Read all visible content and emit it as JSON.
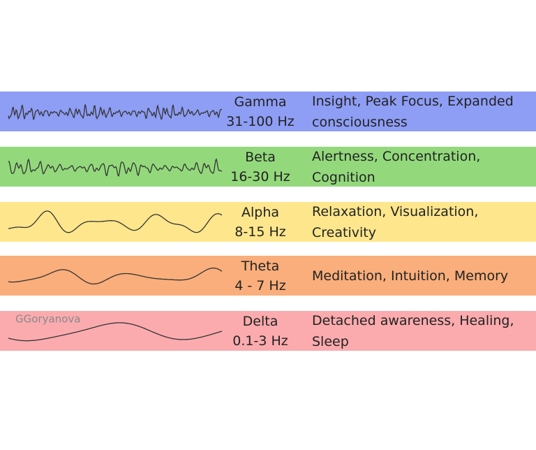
{
  "watermark": "GGoryanova",
  "rows": [
    {
      "name": "Gamma",
      "frequency": "31-100 Hz",
      "description": [
        "Insight, Peak Focus, Expanded",
        "consciousness"
      ],
      "color": "#8e9ef5"
    },
    {
      "name": "Beta",
      "frequency": "16-30 Hz",
      "description": [
        "Alertness, Concentration,",
        "Cognition"
      ],
      "color": "#93d97c"
    },
    {
      "name": "Alpha",
      "frequency": "8-15 Hz",
      "description": [
        "Relaxation, Visualization,",
        "Creativity"
      ],
      "color": "#fde68c"
    },
    {
      "name": "Theta",
      "frequency": "4 - 7 Hz",
      "description": [
        "Meditation, Intuition, Memory"
      ],
      "color": "#f9ae7b"
    },
    {
      "name": "Delta",
      "frequency": "0.1-3 Hz",
      "description": [
        "Detached awareness, Healing,",
        "Sleep"
      ],
      "color": "#fbabae"
    }
  ]
}
